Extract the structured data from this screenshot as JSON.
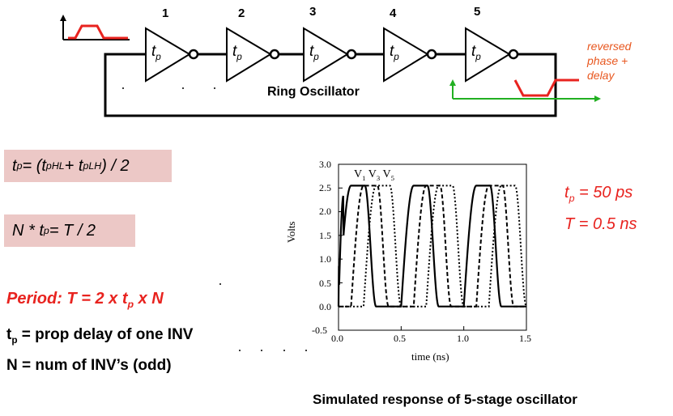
{
  "diagram": {
    "title": "Ring Oscillator",
    "stages": [
      {
        "number": "1",
        "label": "t",
        "sub": "p"
      },
      {
        "number": "2",
        "label": "t",
        "sub": "p"
      },
      {
        "number": "3",
        "label": "t",
        "sub": "p"
      },
      {
        "number": "4",
        "label": "t",
        "sub": "p"
      },
      {
        "number": "5",
        "label": "t",
        "sub": "p"
      }
    ],
    "annotation_lines": [
      "reversed",
      "phase +",
      "delay"
    ],
    "colors": {
      "wire": "#000000",
      "input_waveform": "#e8231f",
      "output_axes": "#22b022",
      "annotation": "#e8571f"
    }
  },
  "formulas": {
    "tp_def": {
      "lhs": "t",
      "lhs_sub": "p",
      "eq": " = (t",
      "a_sub": "pHL",
      "plus": " + t",
      "b_sub": "pLH",
      "tail": ") / 2"
    },
    "n_tp": {
      "a": "N * t",
      "a_sub": "p",
      "tail": " = T / 2"
    },
    "period": {
      "a": "Period: T = 2 x t",
      "a_sub": "p",
      "tail": " x N"
    },
    "tp_text": {
      "a": "t",
      "a_sub": "p",
      "tail": " = prop delay of one INV"
    },
    "n_text": "N = num of INV’s (odd)"
  },
  "values": {
    "tp": {
      "a": "t",
      "a_sub": "p",
      "tail": " = 50 ps"
    },
    "T": "T = 0.5 ns"
  },
  "caption": "Simulated response of 5-stage oscillator",
  "chart_data": {
    "type": "line",
    "xlabel": "time (ns)",
    "ylabel": "Volts",
    "xlim": [
      0,
      1.5
    ],
    "ylim": [
      -0.5,
      3.0
    ],
    "x_ticks": [
      "0.0",
      "0.5",
      "1.0",
      "1.5"
    ],
    "y_ticks": [
      "3.0",
      "2.5",
      "2.0",
      "1.5",
      "1.0",
      "0.5",
      "0.0"
    ],
    "y_bottom_label": "-0.5",
    "legend": {
      "v1": "V",
      "v1_sub": "1",
      "v3": "V",
      "v3_sub": "3",
      "v5": "V",
      "v5_sub": "5"
    },
    "series": [
      {
        "name": "V1",
        "style": "solid",
        "period": 0.5,
        "rise_time": 0.0,
        "phase": 0.0
      },
      {
        "name": "V3",
        "style": "dashed",
        "period": 0.5,
        "phase": 0.1
      },
      {
        "name": "V5",
        "style": "dotted",
        "period": 0.5,
        "phase": 0.2
      }
    ],
    "v_high": 2.55,
    "v_low": 0.0,
    "grid": false
  }
}
